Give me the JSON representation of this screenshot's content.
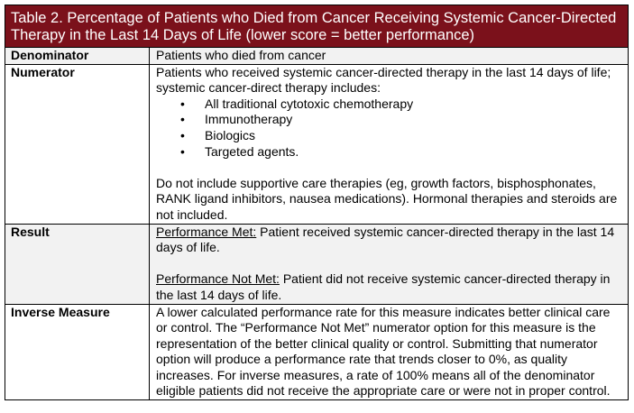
{
  "title": "Table 2. Percentage of Patients who Died from Cancer Receiving Systemic Cancer-Directed Therapy in the Last 14 Days of Life (lower score = better performance)",
  "colors": {
    "header_bg": "#7b111b",
    "shaded_row": "#f2f2f2"
  },
  "rows": {
    "denominator": {
      "label": "Denominator",
      "text": "Patients who died from cancer"
    },
    "numerator": {
      "label": "Numerator",
      "intro": "Patients who received systemic cancer-directed therapy in the last 14 days of life; systemic cancer-direct therapy includes:",
      "items": [
        "All traditional cytotoxic chemotherapy",
        "Immunotherapy",
        "Biologics",
        "Targeted agents."
      ],
      "note": "Do not include supportive care therapies (eg, growth factors, bisphosphonates, RANK ligand inhibitors, nausea medications). Hormonal therapies and steroids are not included."
    },
    "result": {
      "label": "Result",
      "met_label": "Performance Met:",
      "met_text": " Patient received systemic cancer-directed therapy in the last 14 days of life.",
      "not_met_label": "Performance Not Met:",
      "not_met_text": " Patient did not receive systemic cancer-directed therapy in the last 14 days of life."
    },
    "inverse": {
      "label": "Inverse Measure",
      "text": "A lower calculated performance rate for this measure indicates better clinical care or control. The “Performance Not Met” numerator option for this measure is the representation of the better clinical quality or control. Submitting that numerator option will produce a performance rate that trends closer to 0%, as quality increases. For inverse measures, a rate of 100% means all of the denominator eligible patients did not receive the appropriate care or were not in proper control."
    }
  }
}
